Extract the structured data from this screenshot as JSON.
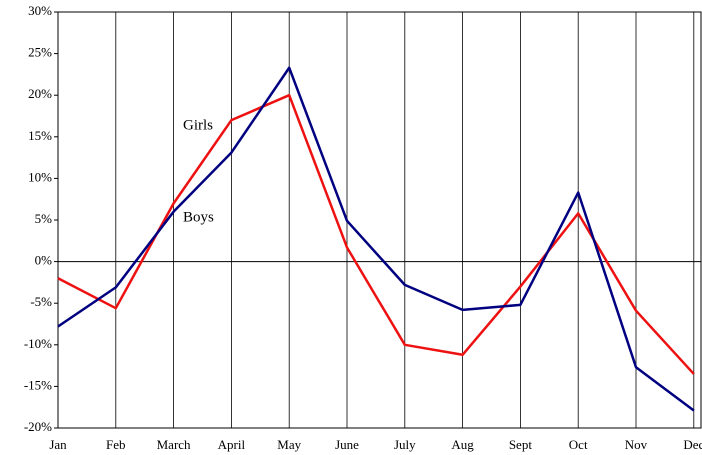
{
  "chart_data": {
    "type": "line",
    "categories": [
      "Jan",
      "Feb",
      "March",
      "April",
      "May",
      "June",
      "July",
      "Aug",
      "Sept",
      "Oct",
      "Nov",
      "Dec"
    ],
    "series": [
      {
        "name": "Girls",
        "color": "#ee1111",
        "values": [
          -2,
          -5.6,
          7,
          17,
          20,
          1.7,
          -10,
          -11.2,
          -3,
          5.8,
          -5.9,
          -13.5
        ]
      },
      {
        "name": "Boys",
        "color": "#000080",
        "values": [
          -7.8,
          -3.1,
          6,
          13.1,
          23.3,
          4.9,
          -2.8,
          -5.8,
          -5.2,
          8.3,
          -12.7,
          -17.9
        ]
      }
    ],
    "ylim": [
      -20,
      30
    ],
    "yticks": [
      {
        "value": -20,
        "label": "-20%"
      },
      {
        "value": -15,
        "label": "-15%"
      },
      {
        "value": -10,
        "label": "-10%"
      },
      {
        "value": -5,
        "label": "-5%"
      },
      {
        "value": 0,
        "label": "0%"
      },
      {
        "value": 5,
        "label": "5%"
      },
      {
        "value": 10,
        "label": "10%"
      },
      {
        "value": 15,
        "label": "15%"
      },
      {
        "value": 20,
        "label": "20%"
      },
      {
        "value": 25,
        "label": "25%"
      },
      {
        "value": 30,
        "label": "30%"
      }
    ],
    "grid": true
  }
}
